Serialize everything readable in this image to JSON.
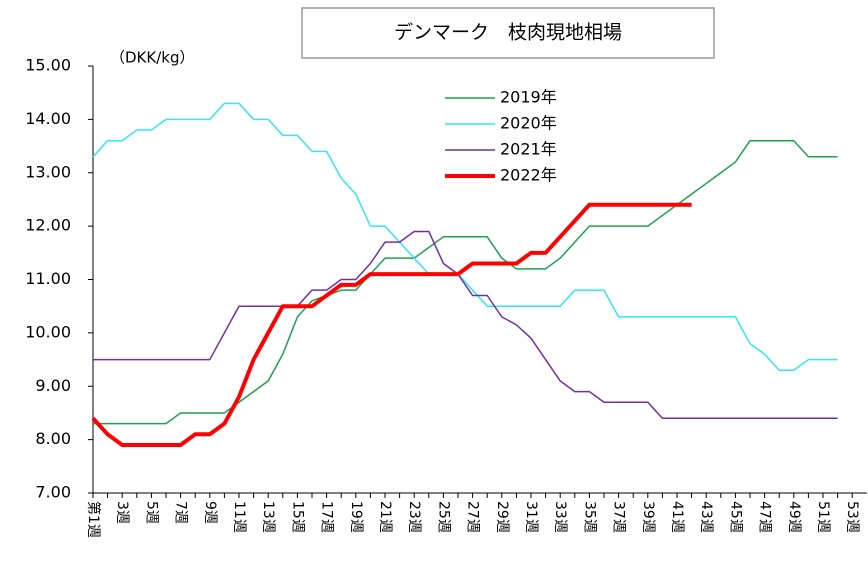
{
  "chart_data": {
    "type": "line",
    "title": "デンマーク　枝肉現地相場",
    "y_unit": "（DKK/kg）",
    "categories": [
      "第1週",
      null,
      "3週",
      null,
      "5週",
      null,
      "7週",
      null,
      "9週",
      null,
      "11週",
      null,
      "13週",
      null,
      "15週",
      null,
      "17週",
      null,
      "19週",
      null,
      "21週",
      null,
      "23週",
      null,
      "25週",
      null,
      "27週",
      null,
      "29週",
      null,
      "31週",
      null,
      "33週",
      null,
      "35週",
      null,
      "37週",
      null,
      "39週",
      null,
      "41週",
      null,
      "43週",
      null,
      "45週",
      null,
      "47週",
      null,
      "49週",
      null,
      "51週",
      null,
      "53週"
    ],
    "ylim": [
      7,
      15
    ],
    "yticks": [
      {
        "value": 7,
        "label": "7.00"
      },
      {
        "value": 8,
        "label": "8.00"
      },
      {
        "value": 9,
        "label": "9.00"
      },
      {
        "value": 10,
        "label": "10.00"
      },
      {
        "value": 11,
        "label": "11.00"
      },
      {
        "value": 12,
        "label": "12.00"
      },
      {
        "value": 13,
        "label": "13.00"
      },
      {
        "value": 14,
        "label": "14.00"
      },
      {
        "value": 15,
        "label": "15.00"
      }
    ],
    "series": [
      {
        "name": "2019年",
        "color": "#1fa050",
        "width": 1.5,
        "values": [
          8.3,
          8.3,
          8.3,
          8.3,
          8.3,
          8.3,
          8.5,
          8.5,
          8.5,
          8.5,
          8.7,
          8.9,
          9.1,
          9.6,
          10.3,
          10.6,
          10.7,
          10.8,
          10.8,
          11.1,
          11.4,
          11.4,
          11.4,
          11.6,
          11.8,
          11.8,
          11.8,
          11.8,
          11.4,
          11.2,
          11.2,
          11.2,
          11.4,
          11.7,
          12.0,
          12.0,
          12.0,
          12.0,
          12.0,
          12.2,
          12.4,
          12.6,
          12.8,
          13.0,
          13.2,
          13.6,
          13.6,
          13.6,
          13.6,
          13.3,
          13.3,
          13.3,
          null
        ]
      },
      {
        "name": "2020年",
        "color": "#33e6f2",
        "width": 1.5,
        "values": [
          13.3,
          13.6,
          13.6,
          13.8,
          13.8,
          14.0,
          14.0,
          14.0,
          14.0,
          14.3,
          14.3,
          14.0,
          14.0,
          13.7,
          13.7,
          13.4,
          13.4,
          12.9,
          12.6,
          12.0,
          12.0,
          11.7,
          11.4,
          11.1,
          11.1,
          11.1,
          10.8,
          10.5,
          10.5,
          10.5,
          10.5,
          10.5,
          10.5,
          10.8,
          10.8,
          10.8,
          10.3,
          10.3,
          10.3,
          10.3,
          10.3,
          10.3,
          10.3,
          10.3,
          10.3,
          9.8,
          9.6,
          9.3,
          9.3,
          9.5,
          9.5,
          9.5,
          null
        ]
      },
      {
        "name": "2021年",
        "color": "#7030a0",
        "width": 1.5,
        "values": [
          9.5,
          9.5,
          9.5,
          9.5,
          9.5,
          9.5,
          9.5,
          9.5,
          9.5,
          10.0,
          10.5,
          10.5,
          10.5,
          10.5,
          10.5,
          10.8,
          10.8,
          11.0,
          11.0,
          11.3,
          11.7,
          11.7,
          11.9,
          11.9,
          11.3,
          11.1,
          10.7,
          10.7,
          10.3,
          10.15,
          9.9,
          9.5,
          9.1,
          8.9,
          8.9,
          8.7,
          8.7,
          8.7,
          8.7,
          8.4,
          8.4,
          8.4,
          8.4,
          8.4,
          8.4,
          8.4,
          8.4,
          8.4,
          8.4,
          8.4,
          8.4,
          8.4,
          null
        ]
      },
      {
        "name": "2022年",
        "color": "#ff0000",
        "width": 4,
        "values": [
          8.4,
          8.1,
          7.9,
          7.9,
          7.9,
          7.9,
          7.9,
          8.1,
          8.1,
          8.3,
          8.8,
          9.5,
          10.0,
          10.5,
          10.5,
          10.5,
          10.7,
          10.9,
          10.9,
          11.1,
          11.1,
          11.1,
          11.1,
          11.1,
          11.1,
          11.1,
          11.3,
          11.3,
          11.3,
          11.3,
          11.5,
          11.5,
          11.8,
          12.1,
          12.4,
          12.4,
          12.4,
          12.4,
          12.4,
          12.4,
          12.4,
          12.4,
          null,
          null,
          null,
          null,
          null,
          null,
          null,
          null,
          null,
          null,
          null
        ]
      }
    ]
  }
}
